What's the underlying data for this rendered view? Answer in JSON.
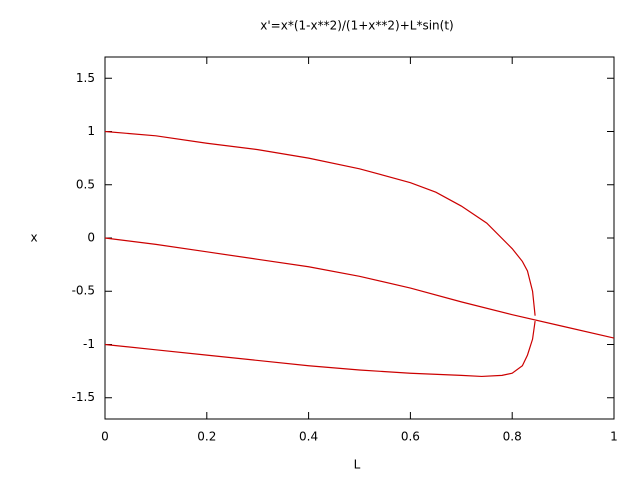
{
  "chart_data": {
    "type": "line",
    "title": "x'=x*(1-x**2)/(1+x**2)+L*sin(t)",
    "xlabel": "L",
    "ylabel": "x",
    "xlim": [
      0,
      1
    ],
    "ylim": [
      -1.7,
      1.7
    ],
    "xticks": [
      0,
      0.2,
      0.4,
      0.6,
      0.8,
      1
    ],
    "yticks": [
      -1.5,
      -1,
      -0.5,
      0,
      0.5,
      1,
      1.5
    ],
    "series": [
      {
        "color": "#cc0000",
        "x": [
          0,
          0.1,
          0.2,
          0.3,
          0.4,
          0.5,
          0.6,
          0.65,
          0.7,
          0.75,
          0.8,
          0.82,
          0.83,
          0.84,
          0.845
        ],
        "values": [
          1,
          0.96,
          0.89,
          0.83,
          0.75,
          0.65,
          0.52,
          0.43,
          0.3,
          0.14,
          -0.1,
          -0.22,
          -0.31,
          -0.5,
          -0.73
        ]
      },
      {
        "color": "#cc0000",
        "x": [
          0,
          0.1,
          0.2,
          0.3,
          0.4,
          0.5,
          0.6,
          0.7,
          0.8,
          0.9,
          1
        ],
        "values": [
          0,
          -0.06,
          -0.13,
          -0.2,
          -0.27,
          -0.36,
          -0.47,
          -0.6,
          -0.72,
          -0.83,
          -0.94
        ]
      },
      {
        "color": "#cc0000",
        "x": [
          0,
          0.1,
          0.2,
          0.3,
          0.4,
          0.5,
          0.6,
          0.7,
          0.74,
          0.78,
          0.8,
          0.82,
          0.83,
          0.84,
          0.845
        ],
        "values": [
          -1,
          -1.05,
          -1.1,
          -1.15,
          -1.2,
          -1.24,
          -1.27,
          -1.29,
          -1.3,
          -1.29,
          -1.27,
          -1.2,
          -1.1,
          -0.95,
          -0.78
        ]
      }
    ]
  }
}
